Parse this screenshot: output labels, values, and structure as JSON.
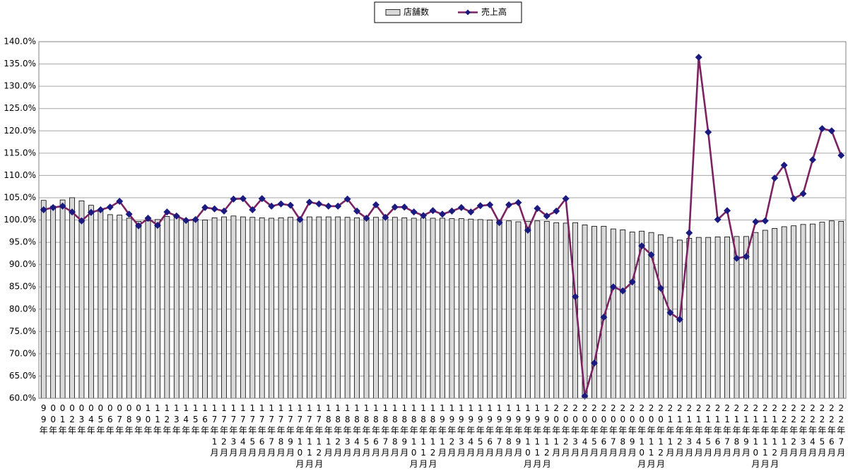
{
  "chart_data": {
    "type": "bar",
    "categories": [
      "99年",
      "00年",
      "01年",
      "02年",
      "03年",
      "04年",
      "05年",
      "06年",
      "07年",
      "08年",
      "09年",
      "10年",
      "11年",
      "12年",
      "13年",
      "14年",
      "15年",
      "16年",
      "17年1月",
      "17年2月",
      "17年3月",
      "17年4月",
      "17年5月",
      "17年6月",
      "17年7月",
      "17年8月",
      "17年9月",
      "17年10月",
      "17年11月",
      "17年12月",
      "18年1月",
      "18年2月",
      "18年3月",
      "18年4月",
      "18年5月",
      "18年6月",
      "18年7月",
      "18年8月",
      "18年9月",
      "18年10月",
      "18年11月",
      "18年12月",
      "19年1月",
      "19年2月",
      "19年3月",
      "19年4月",
      "19年5月",
      "19年6月",
      "19年7月",
      "19年8月",
      "19年9月",
      "19年10月",
      "19年11月",
      "19年12月",
      "20年1月",
      "20年2月",
      "20年3月",
      "20年4月",
      "20年5月",
      "20年6月",
      "20年7月",
      "20年8月",
      "20年9月",
      "20年10月",
      "20年11月",
      "20年12月",
      "21年1月",
      "21年2月",
      "21年3月",
      "21年4月",
      "21年5月",
      "21年6月",
      "21年7月",
      "21年8月",
      "21年9月",
      "21年10月",
      "21年11月",
      "21年12月",
      "22年1月",
      "22年2月",
      "22年3月",
      "22年4月",
      "22年5月",
      "22年6月",
      "22年7月"
    ],
    "series": [
      {
        "name": "店舗数",
        "type": "bar",
        "color": "#d9d9d9",
        "values": [
          104.4,
          103.1,
          104.5,
          105.0,
          104.3,
          103.3,
          102.3,
          101.2,
          101.1,
          100.4,
          99.7,
          99.8,
          100.1,
          100.8,
          100.6,
          100.0,
          100.1,
          100.0,
          100.5,
          100.7,
          100.9,
          100.7,
          100.6,
          100.5,
          100.4,
          100.5,
          100.6,
          100.4,
          100.7,
          100.7,
          100.7,
          100.7,
          100.6,
          100.5,
          100.5,
          100.6,
          100.5,
          100.6,
          100.5,
          100.4,
          100.5,
          100.4,
          100.4,
          100.3,
          100.3,
          100.2,
          100.1,
          100.0,
          99.9,
          99.8,
          99.6,
          99.7,
          99.8,
          99.7,
          99.4,
          99.3,
          99.4,
          98.9,
          98.6,
          98.6,
          98.0,
          97.8,
          97.3,
          97.5,
          97.2,
          96.7,
          96.1,
          95.5,
          95.9,
          96.1,
          96.1,
          96.2,
          96.2,
          96.3,
          96.3,
          97.2,
          97.7,
          98.1,
          98.5,
          98.7,
          99.0,
          99.1,
          99.5,
          99.8,
          99.7
        ]
      },
      {
        "name": "売上高",
        "type": "line",
        "color": "#7b2263",
        "marker_color": "#1a1a80",
        "values": [
          102.3,
          102.8,
          103.1,
          101.8,
          99.8,
          101.7,
          102.3,
          102.9,
          104.2,
          101.3,
          98.7,
          100.4,
          98.8,
          101.8,
          100.9,
          99.9,
          100.1,
          102.8,
          102.5,
          102.0,
          104.7,
          104.8,
          102.3,
          104.8,
          103.1,
          103.6,
          103.3,
          100.1,
          104.0,
          103.6,
          103.1,
          103.1,
          104.7,
          102.0,
          100.4,
          103.4,
          100.6,
          102.9,
          102.9,
          101.8,
          101.0,
          102.1,
          101.3,
          102.0,
          102.8,
          101.8,
          103.2,
          103.4,
          99.4,
          103.4,
          103.9,
          97.7,
          102.6,
          100.9,
          102.0,
          104.8,
          82.8,
          60.5,
          67.9,
          78.2,
          85.0,
          84.1,
          86.1,
          94.2,
          92.2,
          84.7,
          79.2,
          77.7,
          97.1,
          136.5,
          119.7,
          100.1,
          102.1,
          91.4,
          91.8,
          99.6,
          99.8,
          109.4,
          112.3,
          104.8,
          105.9,
          113.5,
          120.5,
          120.0,
          114.5
        ]
      }
    ],
    "ylim": [
      60,
      140
    ],
    "yticks": [
      {
        "value": 60,
        "label": "60.0%"
      },
      {
        "value": 65,
        "label": "65.0%"
      },
      {
        "value": 70,
        "label": "70.0%"
      },
      {
        "value": 75,
        "label": "75.0%"
      },
      {
        "value": 80,
        "label": "80.0%"
      },
      {
        "value": 85,
        "label": "85.0%"
      },
      {
        "value": 90,
        "label": "90.0%"
      },
      {
        "value": 95,
        "label": "95.0%"
      },
      {
        "value": 100,
        "label": "100.0%"
      },
      {
        "value": 105,
        "label": "105.0%"
      },
      {
        "value": 110,
        "label": "110.0%"
      },
      {
        "value": 115,
        "label": "115.0%"
      },
      {
        "value": 120,
        "label": "120.0%"
      },
      {
        "value": 125,
        "label": "125.0%"
      },
      {
        "value": 130,
        "label": "130.0%"
      },
      {
        "value": 135,
        "label": "135.0%"
      },
      {
        "value": 140,
        "label": "140.0%"
      }
    ],
    "grid": true,
    "legend": "top"
  }
}
